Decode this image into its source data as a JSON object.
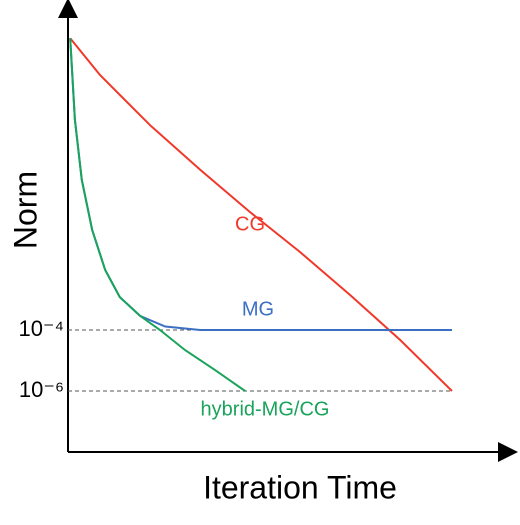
{
  "chart_data": {
    "type": "line",
    "xlabel": "Iteration Time",
    "ylabel": "Norm",
    "xlim": [
      0,
      10
    ],
    "ylim": [
      1e-08,
      1000000.0
    ],
    "yscale": "log",
    "yticks": [
      {
        "value": 0.0001,
        "label": "10⁻⁴"
      },
      {
        "value": 1e-06,
        "label": "10⁻⁶"
      }
    ],
    "grid": true,
    "series": [
      {
        "name": "CG",
        "color": "#f0392b",
        "x": [
          0.05,
          0.74,
          1.9,
          3.06,
          4.21,
          5.37,
          6.53,
          7.69,
          8.89
        ],
        "values": [
          370000,
          23000,
          520,
          18,
          0.74,
          0.036,
          0.0014,
          4.7e-05,
          1e-06
        ]
      },
      {
        "name": "MG",
        "color": "#3a6fc4",
        "x": [
          0.05,
          0.16,
          0.32,
          0.56,
          0.86,
          1.2,
          1.67,
          2.25,
          3.06,
          5.37,
          8.89
        ],
        "values": [
          370000,
          780,
          8.3,
          0.19,
          0.0093,
          0.0012,
          0.00029,
          0.00013,
          0.0001,
          0.0001,
          0.0001
        ]
      },
      {
        "name": "hybrid-MG/CG",
        "color": "#1aa35a",
        "x": [
          0.05,
          0.16,
          0.32,
          0.56,
          0.86,
          1.2,
          1.67,
          2.13,
          2.71,
          3.4,
          4.1
        ],
        "values": [
          370000,
          780,
          8.3,
          0.19,
          0.0093,
          0.0012,
          0.00029,
          0.0001,
          2.2e-05,
          4.9e-06,
          1e-06
        ]
      }
    ]
  }
}
